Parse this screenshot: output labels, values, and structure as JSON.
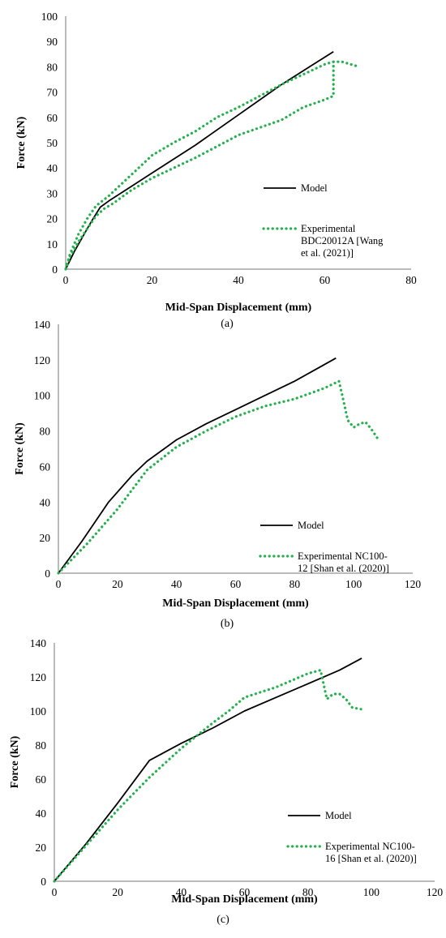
{
  "chart_data": [
    {
      "type": "line",
      "panel_label": "(a)",
      "xlabel": "Mid-Span Displacement (mm)",
      "ylabel": "Force (kN)",
      "xlim": [
        0,
        80
      ],
      "ylim": [
        0,
        100
      ],
      "xticks": [
        0,
        20,
        40,
        60,
        80
      ],
      "yticks": [
        0,
        10,
        20,
        30,
        40,
        50,
        60,
        70,
        80,
        90,
        100
      ],
      "grid": false,
      "legend_position": "lower-right",
      "series": [
        {
          "name": "Model",
          "color": "#000000",
          "style": "solid",
          "x": [
            0,
            2,
            4,
            6,
            8,
            10,
            15,
            20,
            30,
            40,
            50,
            62
          ],
          "y": [
            0,
            7,
            13,
            19,
            24.5,
            27,
            32.5,
            38,
            49,
            61,
            73,
            86
          ]
        },
        {
          "name": "Experimental BDC20012A [Wang et al. (2021)]",
          "legend_lines": [
            "Experimental",
            "BDC20012A [Wang",
            "et al. (2021)]"
          ],
          "color": "#22b14c",
          "style": "dotted",
          "x": [
            0,
            1,
            3,
            5,
            7,
            9,
            11,
            13,
            15,
            18,
            20,
            25,
            30,
            35,
            40,
            45,
            50,
            55,
            60,
            62,
            62,
            60,
            55,
            50,
            45,
            40,
            35,
            30,
            25,
            20,
            15,
            10,
            7,
            5,
            3,
            1,
            0
          ],
          "y": [
            0,
            5,
            11,
            16,
            21,
            24,
            26,
            28.5,
            31,
            34,
            36,
            40,
            44,
            48.5,
            53,
            56,
            59,
            64,
            67,
            68.5,
            82,
            81,
            77,
            73,
            68.5,
            64,
            60,
            54.5,
            50,
            45,
            37,
            29,
            25,
            20,
            14,
            6,
            0
          ]
        },
        {
          "name": "",
          "color": "#22b14c",
          "style": "dotted",
          "legend": false,
          "x": [
            62,
            64,
            66,
            68
          ],
          "y": [
            82,
            82,
            81,
            80
          ]
        }
      ]
    },
    {
      "type": "line",
      "panel_label": "(b)",
      "xlabel": "Mid-Span Displacement (mm)",
      "ylabel": "Force (kN)",
      "xlim": [
        0,
        120
      ],
      "ylim": [
        0,
        140
      ],
      "xticks": [
        0,
        20,
        40,
        60,
        80,
        100,
        120
      ],
      "yticks": [
        0,
        20,
        40,
        60,
        80,
        100,
        120,
        140
      ],
      "grid": false,
      "legend_position": "lower-right",
      "series": [
        {
          "name": "Model",
          "color": "#000000",
          "style": "solid",
          "x": [
            0,
            8,
            17,
            25,
            30,
            40,
            50,
            60,
            70,
            80,
            94
          ],
          "y": [
            0,
            18,
            40,
            55,
            63,
            75,
            84,
            92,
            100,
            108,
            121
          ]
        },
        {
          "name": "Experimental NC100-12 [Shan et al. (2020)]",
          "legend_lines": [
            "Experimental NC100-",
            "12 [Shan et al. (2020)]"
          ],
          "color": "#22b14c",
          "style": "dotted",
          "x": [
            0,
            10,
            20,
            30,
            40,
            50,
            60,
            70,
            80,
            90,
            95,
            96,
            98,
            100,
            102,
            104,
            106,
            108
          ],
          "y": [
            0,
            17,
            36,
            58,
            71,
            80,
            88,
            94,
            98,
            104,
            108,
            101,
            86,
            82,
            84,
            85,
            81,
            76
          ]
        }
      ]
    },
    {
      "type": "line",
      "panel_label": "(c)",
      "xlabel": "Mid-Span Displacement (mm)",
      "ylabel": "Force (kN)",
      "xlim": [
        0,
        120
      ],
      "ylim": [
        0,
        140
      ],
      "xticks": [
        0,
        20,
        40,
        60,
        80,
        100,
        120
      ],
      "yticks": [
        0,
        20,
        40,
        60,
        80,
        100,
        120,
        140
      ],
      "grid": false,
      "legend_position": "lower-right",
      "series": [
        {
          "name": "Model",
          "color": "#000000",
          "style": "solid",
          "x": [
            0,
            10,
            20,
            30,
            40,
            50,
            60,
            70,
            80,
            90,
            97
          ],
          "y": [
            0,
            22,
            46,
            71,
            81,
            90,
            100,
            108,
            116,
            124,
            131
          ]
        },
        {
          "name": "Experimental NC100-16 [Shan et al. (2020)]",
          "legend_lines": [
            "Experimental NC100-",
            "16 [Shan et al. (2020)]"
          ],
          "color": "#22b14c",
          "style": "dotted",
          "x": [
            0,
            10,
            20,
            30,
            40,
            50,
            55,
            60,
            70,
            80,
            84,
            86,
            88,
            90,
            92,
            94,
            97
          ],
          "y": [
            0,
            21,
            42,
            61,
            78,
            93,
            100,
            108,
            114,
            122,
            124,
            107,
            110,
            110,
            107,
            102,
            101
          ]
        }
      ]
    }
  ]
}
